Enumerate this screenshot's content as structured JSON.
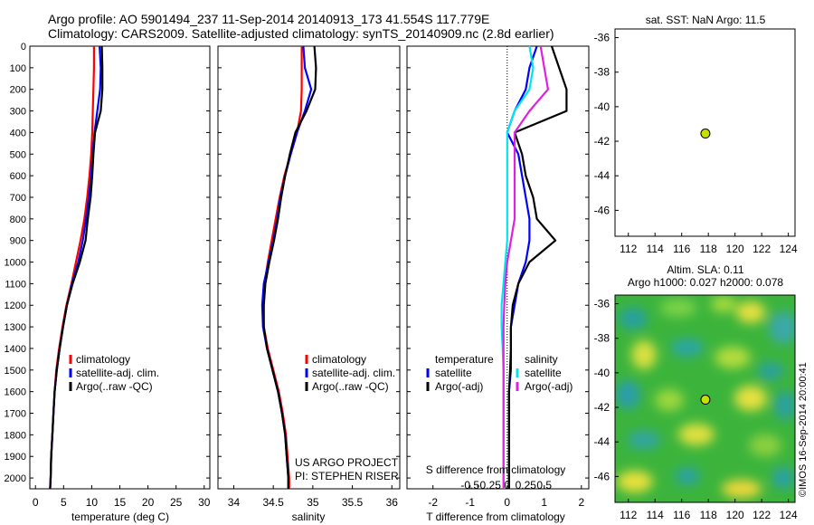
{
  "header": {
    "line1": "Argo profile: AO 5901494_237 11-Sep-2014 20140913_173 41.554S 117.779E",
    "line2": "Climatology: CARS2009. Satellite-adjusted climatology: synTS_20140909.nc (2.8d earlier)"
  },
  "credits": {
    "line1": "US ARGO PROJECT",
    "line2": "PI: STEPHEN RISER"
  },
  "side_label": "©IMOS 16-Sep-2014 20:00:41",
  "colors": {
    "climatology": "#ff0000",
    "satellite": "#0000ff",
    "argo": "#000000",
    "sat_salinity": "#00e5ee",
    "argo_salinity": "#e020e0",
    "marker": "#c8e000"
  },
  "chart_data": [
    {
      "id": "temperature",
      "type": "line",
      "xlabel": "temperature (deg C)",
      "xlim": [
        -1,
        31
      ],
      "ylim": [
        0,
        2050
      ],
      "xticks": [
        0,
        5,
        10,
        15,
        20,
        25,
        30
      ],
      "yticks": [
        0,
        100,
        200,
        300,
        400,
        500,
        600,
        700,
        800,
        900,
        1000,
        1100,
        1200,
        1300,
        1400,
        1500,
        1600,
        1700,
        1800,
        1900,
        2000
      ],
      "y_inverted": true,
      "legend": [
        "climatology",
        "satellite-adj. clim.",
        "Argo(..raw -QC)"
      ],
      "legend_position": "lower-right",
      "series": [
        {
          "name": "climatology",
          "color": "#ff0000",
          "x": [
            10.4,
            10.4,
            10.3,
            10.2,
            10.1,
            9.9,
            9.6,
            9.2,
            8.7,
            8.0,
            7.2,
            6.4,
            5.5,
            4.8,
            4.2,
            3.7,
            3.4,
            3.2,
            3.0,
            2.8,
            2.7,
            2.6
          ],
          "y": [
            0,
            100,
            200,
            300,
            400,
            500,
            600,
            700,
            800,
            900,
            1000,
            1100,
            1200,
            1300,
            1400,
            1500,
            1600,
            1700,
            1800,
            1900,
            2000,
            2050
          ]
        },
        {
          "name": "satellite-adj. clim.",
          "color": "#0000ff",
          "x": [
            11.4,
            11.6,
            11.5,
            11.0,
            10.5,
            10.2,
            9.9,
            9.5,
            9.0,
            8.4,
            7.6,
            6.5,
            5.6,
            4.9,
            4.3,
            3.8,
            3.4,
            3.2,
            3.0,
            2.8,
            2.7,
            2.6
          ],
          "y": [
            0,
            100,
            200,
            300,
            400,
            500,
            600,
            700,
            800,
            900,
            1000,
            1100,
            1200,
            1300,
            1400,
            1500,
            1600,
            1700,
            1800,
            1900,
            2000,
            2050
          ]
        },
        {
          "name": "Argo(..raw -QC)",
          "color": "#000000",
          "x": [
            11.8,
            11.9,
            11.9,
            11.6,
            10.6,
            10.3,
            10.1,
            9.8,
            9.3,
            8.9,
            7.9,
            6.6,
            5.6,
            4.9,
            4.3,
            3.8,
            3.4,
            3.2,
            3.0,
            2.8,
            2.7,
            2.6
          ],
          "y": [
            0,
            100,
            200,
            300,
            400,
            500,
            600,
            700,
            800,
            900,
            1000,
            1100,
            1200,
            1300,
            1400,
            1500,
            1600,
            1700,
            1800,
            1900,
            2000,
            2050
          ]
        }
      ]
    },
    {
      "id": "salinity",
      "type": "line",
      "xlabel": "salinity",
      "xlim": [
        33.8,
        36.1
      ],
      "ylim": [
        0,
        2050
      ],
      "xticks": [
        34,
        34.5,
        35,
        35.5,
        36
      ],
      "y_inverted": true,
      "legend": [
        "climatology",
        "satellite-adj. clim.",
        "Argo(..raw -QC)"
      ],
      "legend_position": "lower-right",
      "series": [
        {
          "name": "climatology",
          "color": "#ff0000",
          "x": [
            34.86,
            34.86,
            34.86,
            34.85,
            34.8,
            34.72,
            34.64,
            34.58,
            34.53,
            34.48,
            34.43,
            34.39,
            34.37,
            34.38,
            34.43,
            34.5,
            34.57,
            34.62,
            34.66,
            34.68,
            34.7,
            34.7
          ],
          "y": [
            0,
            100,
            200,
            300,
            400,
            500,
            600,
            700,
            800,
            900,
            1000,
            1100,
            1200,
            1300,
            1400,
            1500,
            1600,
            1700,
            1800,
            1900,
            2000,
            2050
          ]
        },
        {
          "name": "satellite-adj. clim.",
          "color": "#0000ff",
          "x": [
            34.88,
            34.9,
            34.98,
            34.9,
            34.8,
            34.72,
            34.65,
            34.59,
            34.55,
            34.5,
            34.44,
            34.38,
            34.36,
            34.37,
            34.42,
            34.49,
            34.56,
            34.61,
            34.65,
            34.67,
            34.69,
            34.69
          ],
          "y": [
            0,
            100,
            200,
            300,
            400,
            500,
            600,
            700,
            800,
            900,
            1000,
            1100,
            1200,
            1300,
            1400,
            1500,
            1600,
            1700,
            1800,
            1900,
            2000,
            2050
          ]
        },
        {
          "name": "Argo(..raw -QC)",
          "color": "#000000",
          "x": [
            35.02,
            35.04,
            35.03,
            34.92,
            34.78,
            34.71,
            34.65,
            34.6,
            34.56,
            34.51,
            34.45,
            34.4,
            34.38,
            34.38,
            34.42,
            34.49,
            34.56,
            34.61,
            34.65,
            34.67,
            34.69,
            34.69
          ],
          "y": [
            0,
            100,
            200,
            300,
            400,
            500,
            600,
            700,
            800,
            900,
            1000,
            1100,
            1200,
            1300,
            1400,
            1500,
            1600,
            1700,
            1800,
            1900,
            2000,
            2050
          ]
        }
      ]
    },
    {
      "id": "difference",
      "type": "line",
      "xlabel": "T difference from climatology",
      "xlabel_top": "S difference from climatology",
      "xlim": [
        -2.7,
        2.2
      ],
      "ylim": [
        0,
        2050
      ],
      "xticks": [
        -2,
        -1,
        0,
        1,
        2
      ],
      "xticks_top": [
        -0.5,
        -0.25,
        0,
        0.25,
        0.5
      ],
      "y_inverted": true,
      "legend_groups": [
        {
          "title": "temperature",
          "items": [
            "satellite",
            "Argo(-adj)"
          ]
        },
        {
          "title": "salinity",
          "items": [
            "satellite",
            "Argo(-adj)"
          ]
        }
      ],
      "legend_position": "lower-right",
      "series": [
        {
          "name": "satellite",
          "group": "temperature",
          "color": "#0000ff",
          "x": [
            0.8,
            0.6,
            0.5,
            0.2,
            0.0,
            0.3,
            0.4,
            0.5,
            0.6,
            0.6,
            0.5,
            0.3,
            0.2,
            0.1,
            0.1,
            0.1,
            0.05,
            0.05,
            0.05,
            0.05,
            0.05,
            0.05
          ],
          "y": [
            0,
            100,
            200,
            300,
            400,
            500,
            600,
            700,
            800,
            900,
            1000,
            1100,
            1200,
            1300,
            1400,
            1500,
            1600,
            1700,
            1800,
            1900,
            2000,
            2050
          ]
        },
        {
          "name": "Argo(-adj)",
          "group": "temperature",
          "color": "#000000",
          "x": [
            1.2,
            1.4,
            1.6,
            1.6,
            0.2,
            0.4,
            0.5,
            0.7,
            0.8,
            1.3,
            0.6,
            0.3,
            0.15,
            0.1,
            0.1,
            0.08,
            0.05,
            0.05,
            0.05,
            0.05,
            0.05,
            0.05
          ],
          "y": [
            0,
            100,
            200,
            300,
            400,
            500,
            600,
            700,
            800,
            900,
            1000,
            1100,
            1200,
            1300,
            1400,
            1500,
            1600,
            1700,
            1800,
            1900,
            2000,
            2050
          ]
        },
        {
          "name": "satellite",
          "group": "salinity",
          "color": "#00e5ee",
          "x": [
            0.6,
            0.7,
            0.6,
            0.2,
            0.0,
            0.0,
            0.0,
            0.0,
            0.0,
            0.0,
            -0.05,
            -0.1,
            -0.15,
            -0.15,
            -0.12,
            -0.1,
            -0.1,
            -0.1,
            -0.1,
            -0.1,
            -0.1,
            -0.1
          ],
          "y": [
            0,
            100,
            200,
            300,
            400,
            500,
            600,
            700,
            800,
            900,
            1000,
            1100,
            1200,
            1300,
            1400,
            1500,
            1600,
            1700,
            1800,
            1900,
            2000,
            2050
          ]
        },
        {
          "name": "Argo(-adj)",
          "group": "salinity",
          "color": "#e020e0",
          "x": [
            0.9,
            1.0,
            1.1,
            0.6,
            0.2,
            0.2,
            0.2,
            0.2,
            0.2,
            0.1,
            0.0,
            -0.05,
            -0.08,
            -0.1,
            -0.1,
            -0.1,
            -0.1,
            -0.1,
            -0.1,
            -0.1,
            -0.1,
            -0.1
          ],
          "y": [
            0,
            100,
            200,
            300,
            400,
            500,
            600,
            700,
            800,
            900,
            1000,
            1100,
            1200,
            1300,
            1400,
            1500,
            1600,
            1700,
            1800,
            1900,
            2000,
            2050
          ]
        }
      ]
    },
    {
      "id": "sst-map",
      "type": "scatter",
      "title": "sat. SST: NaN Argo: 11.5",
      "xlim": [
        111,
        124.5
      ],
      "ylim": [
        -47.5,
        -35.5
      ],
      "xticks": [
        112,
        114,
        116,
        118,
        120,
        122,
        124
      ],
      "yticks": [
        -36,
        -38,
        -40,
        -42,
        -44,
        -46
      ],
      "points": [
        {
          "x": 117.779,
          "y": -41.554
        }
      ]
    },
    {
      "id": "sla-map",
      "type": "heatmap",
      "title": "Altim. SLA: 0.11",
      "subtitle": "Argo h1000: 0.027 h2000: 0.078",
      "xlim": [
        111,
        124.5
      ],
      "ylim": [
        -47.5,
        -35.5
      ],
      "xticks": [
        112,
        114,
        116,
        118,
        120,
        122,
        124
      ],
      "yticks": [
        -36,
        -38,
        -40,
        -42,
        -44,
        -46
      ],
      "points": [
        {
          "x": 117.779,
          "y": -41.554
        }
      ]
    }
  ]
}
